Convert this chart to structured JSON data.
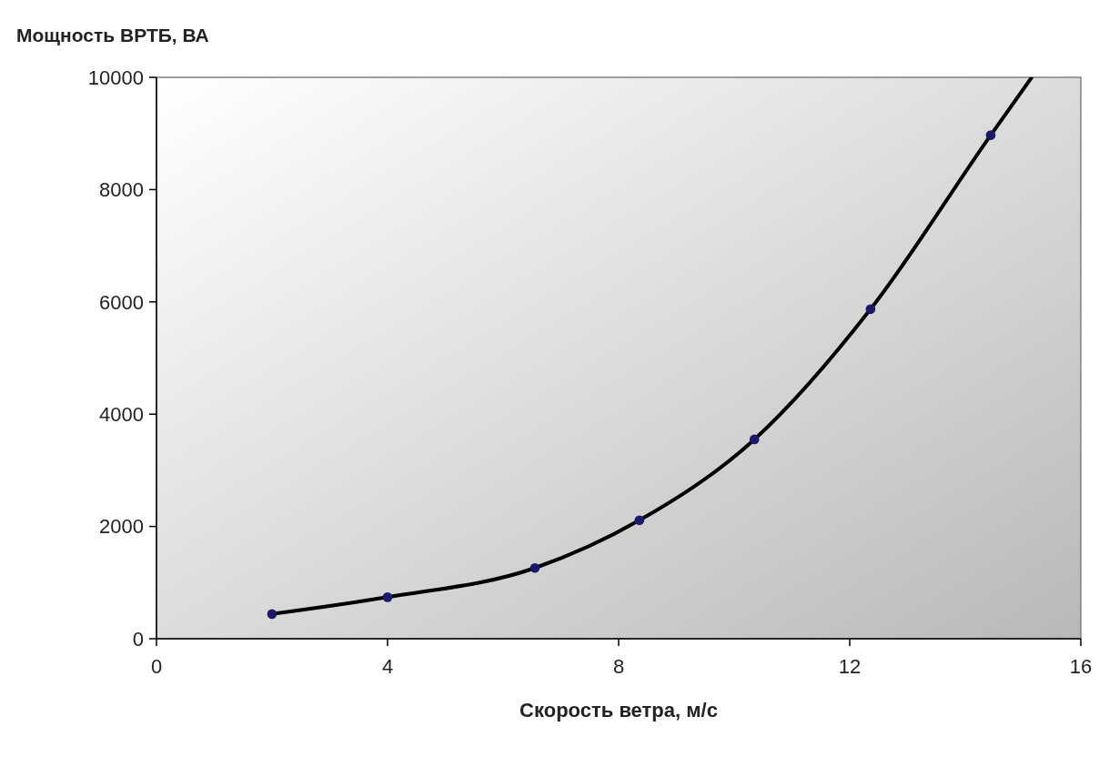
{
  "chart_data": {
    "type": "line",
    "xlabel": "Скорость ветра, м/с",
    "ylabel": "Мощность ВРТБ, ВА",
    "xlim": [
      0,
      16
    ],
    "xticks": [
      0,
      4,
      8,
      12,
      16
    ],
    "ylim": [
      0,
      10000
    ],
    "yticks": [
      0,
      2000,
      4000,
      6000,
      8000,
      10000
    ],
    "grid": false,
    "series": [
      {
        "color": "#000000",
        "marker": "none",
        "x": [
          2,
          4,
          6.55,
          8.36,
          10.35,
          12.36,
          14.44,
          15.15
        ],
        "values": [
          440,
          740,
          1260,
          2110,
          3550,
          5870,
          8970,
          10000
        ]
      },
      {
        "type": "scatter",
        "color": "#1a1a66",
        "marker": "circle",
        "x": [
          2,
          4,
          6.55,
          8.36,
          10.35,
          12.36,
          14.44
        ],
        "values": [
          440,
          740,
          1260,
          2110,
          3550,
          5870,
          8970
        ]
      }
    ]
  }
}
